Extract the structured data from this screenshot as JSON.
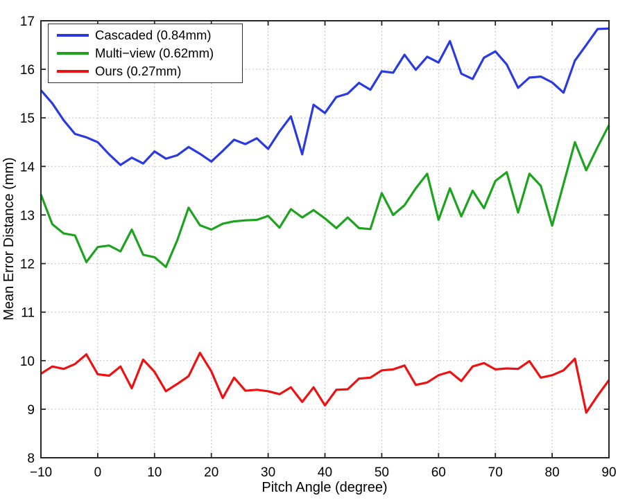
{
  "figure": {
    "background": "#ffffff"
  },
  "chart_data": {
    "type": "line",
    "title": "",
    "xlabel": "Pitch Angle (degree)",
    "ylabel": "Mean Error Distance (mm)",
    "xlim": [
      -10,
      90
    ],
    "ylim": [
      8,
      17
    ],
    "x_ticks": [
      -10,
      0,
      10,
      20,
      30,
      40,
      50,
      60,
      70,
      80,
      90
    ],
    "y_ticks": [
      8,
      9,
      10,
      11,
      12,
      13,
      14,
      15,
      16,
      17
    ],
    "grid": "dotted",
    "grid_color": "#b3b3b3",
    "axis_color": "#262626",
    "tick_label_color": "#000000",
    "legend_position": "top-left",
    "x": [
      -10,
      -8,
      -6,
      -4,
      -2,
      0,
      2,
      4,
      6,
      8,
      10,
      12,
      14,
      16,
      18,
      20,
      22,
      24,
      26,
      28,
      30,
      32,
      34,
      36,
      38,
      40,
      42,
      44,
      46,
      48,
      50,
      52,
      54,
      56,
      58,
      60,
      62,
      64,
      66,
      68,
      70,
      72,
      74,
      76,
      78,
      80,
      82,
      84,
      86,
      88,
      90
    ],
    "series": [
      {
        "name": "Cascaded (0.84mm)",
        "color": "#2a3ae0",
        "values": [
          15.57,
          15.3,
          14.95,
          14.67,
          14.6,
          14.5,
          14.25,
          14.03,
          14.18,
          14.06,
          14.31,
          14.16,
          14.23,
          14.4,
          14.26,
          14.1,
          14.32,
          14.55,
          14.46,
          14.58,
          14.36,
          14.72,
          15.03,
          14.25,
          15.27,
          15.1,
          15.43,
          15.5,
          15.72,
          15.58,
          15.96,
          15.93,
          16.3,
          15.99,
          16.26,
          16.14,
          16.58,
          15.91,
          15.8,
          16.24,
          16.37,
          16.1,
          15.62,
          15.83,
          15.85,
          15.73,
          15.52,
          16.18,
          16.5,
          16.83,
          16.84
        ]
      },
      {
        "name": "Multi−view (0.62mm)",
        "color": "#1ea31e",
        "values": [
          13.42,
          12.81,
          12.62,
          12.58,
          12.03,
          12.34,
          12.37,
          12.25,
          12.7,
          12.18,
          12.13,
          11.93,
          12.48,
          13.15,
          12.79,
          12.7,
          12.82,
          12.87,
          12.89,
          12.9,
          12.98,
          12.74,
          13.12,
          12.95,
          13.1,
          12.93,
          12.73,
          12.95,
          12.73,
          12.71,
          13.45,
          13.0,
          13.2,
          13.55,
          13.85,
          12.9,
          13.55,
          12.97,
          13.5,
          13.14,
          13.7,
          13.88,
          13.05,
          13.85,
          13.6,
          12.78,
          13.64,
          14.5,
          13.92,
          14.4,
          14.85
        ]
      },
      {
        "name": "Ours (0.27mm)",
        "color": "#ee1111",
        "values": [
          9.73,
          9.88,
          9.83,
          9.93,
          10.13,
          9.72,
          9.69,
          9.88,
          9.43,
          10.02,
          9.77,
          9.37,
          9.52,
          9.68,
          10.16,
          9.78,
          9.23,
          9.65,
          9.38,
          9.4,
          9.37,
          9.31,
          9.45,
          9.15,
          9.45,
          9.08,
          9.4,
          9.41,
          9.63,
          9.65,
          9.8,
          9.82,
          9.9,
          9.5,
          9.55,
          9.7,
          9.77,
          9.58,
          9.88,
          9.95,
          9.82,
          9.84,
          9.83,
          9.99,
          9.65,
          9.7,
          9.8,
          10.04,
          8.93,
          9.28,
          9.6
        ]
      }
    ]
  }
}
